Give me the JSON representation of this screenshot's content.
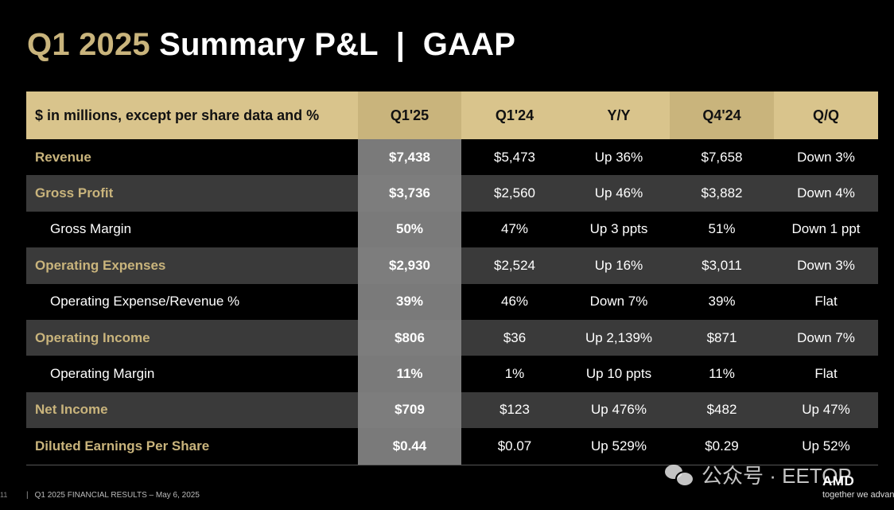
{
  "title": {
    "accent": "Q1 2025",
    "rest": " Summary P&L  |  GAAP"
  },
  "table": {
    "headers": [
      "$ in millions, except per share data and %",
      "Q1'25",
      "Q1'24",
      "Y/Y",
      "Q4'24",
      "Q/Q"
    ],
    "rows": [
      {
        "label": "Revenue",
        "type": "major",
        "values": [
          "$7,438",
          "$5,473",
          "Up 36%",
          "$7,658",
          "Down 3%"
        ]
      },
      {
        "label": "Gross Profit",
        "type": "major",
        "values": [
          "$3,736",
          "$2,560",
          "Up 46%",
          "$3,882",
          "Down 4%"
        ]
      },
      {
        "label": "Gross Margin",
        "type": "minor",
        "values": [
          "50%",
          "47%",
          "Up 3 ppts",
          "51%",
          "Down 1 ppt"
        ]
      },
      {
        "label": "Operating Expenses",
        "type": "major",
        "values": [
          "$2,930",
          "$2,524",
          "Up 16%",
          "$3,011",
          "Down 3%"
        ]
      },
      {
        "label": "Operating Expense/Revenue %",
        "type": "minor",
        "values": [
          "39%",
          "46%",
          "Down 7%",
          "39%",
          "Flat"
        ]
      },
      {
        "label": "Operating Income",
        "type": "major",
        "values": [
          "$806",
          "$36",
          "Up 2,139%",
          "$871",
          "Down 7%"
        ]
      },
      {
        "label": "Operating Margin",
        "type": "minor",
        "values": [
          "11%",
          "1%",
          "Up 10 ppts",
          "11%",
          "Flat"
        ]
      },
      {
        "label": "Net Income",
        "type": "major",
        "values": [
          "$709",
          "$123",
          "Up 476%",
          "$482",
          "Up 47%"
        ]
      },
      {
        "label": "Diluted Earnings Per Share",
        "type": "major",
        "values": [
          "$0.44",
          "$0.07",
          "Up 529%",
          "$0.29",
          "Up 52%"
        ]
      }
    ]
  },
  "footer": {
    "page": "11",
    "pipe": "|",
    "text": "Q1 2025 FINANCIAL RESULTS – May 6, 2025"
  },
  "watermark": {
    "icon": "wechat-icon",
    "text": "公众号 · EETOP"
  },
  "logo": {
    "brand": "AMD",
    "tagline": "together we advance"
  },
  "colors": {
    "accent": "#c9b47c",
    "header_bg": "#d9c48c",
    "shaded_row": "#3a3a3a",
    "highlight_col": "#7a7a7a"
  }
}
